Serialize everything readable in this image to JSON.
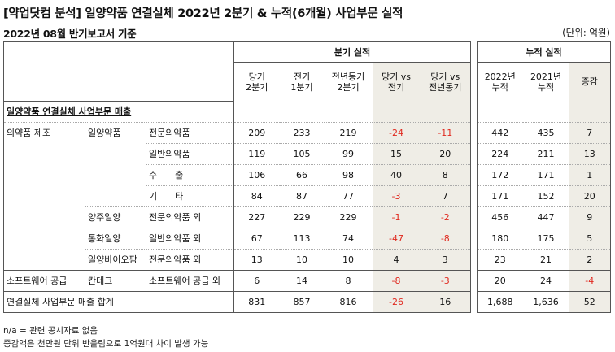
{
  "header": {
    "title": "[약업닷컴 분석] 일양약품 연결실체 2022년 2분기 & 누적(6개월) 사업부문 실적",
    "subtitle": "2022년 08월 반기보고서 기준",
    "unit": "(단위: 억원)"
  },
  "quarterly": {
    "group_label": "분기 실적",
    "col_cur_l1": "당기",
    "col_cur_l2": "2분기",
    "col_prev_l1": "전기",
    "col_prev_l2": "1분기",
    "col_yoy_l1": "전년동기",
    "col_yoy_l2": "2분기",
    "col_vsprev_l1": "당기 vs",
    "col_vsprev_l2": "전기",
    "col_vsyoy_l1": "당기 vs",
    "col_vsyoy_l2": "전년동기"
  },
  "cumulative": {
    "group_label": "누적 실적",
    "col_2022_l1": "2022년",
    "col_2022_l2": "누적",
    "col_2021_l1": "2021년",
    "col_2021_l2": "누적",
    "col_change": "증감"
  },
  "section_label": "일양약품 연결실체 사업부문 매출",
  "rows": [
    {
      "seg": "의약품 제조",
      "co": "일양약품",
      "item": "전문의약품",
      "q_cur": "209",
      "q_prev": "233",
      "q_yoy": "219",
      "vs_prev": "-24",
      "vs_yoy": "-11",
      "c2022": "442",
      "c2021": "435",
      "chg": "7"
    },
    {
      "seg": "",
      "co": "",
      "item": "일반의약품",
      "q_cur": "119",
      "q_prev": "105",
      "q_yoy": "99",
      "vs_prev": "15",
      "vs_yoy": "20",
      "c2022": "224",
      "c2021": "211",
      "chg": "13"
    },
    {
      "seg": "",
      "co": "",
      "item": "수　　출",
      "q_cur": "106",
      "q_prev": "66",
      "q_yoy": "98",
      "vs_prev": "40",
      "vs_yoy": "8",
      "c2022": "172",
      "c2021": "171",
      "chg": "1"
    },
    {
      "seg": "",
      "co": "",
      "item": "기　　타",
      "q_cur": "84",
      "q_prev": "87",
      "q_yoy": "77",
      "vs_prev": "-3",
      "vs_yoy": "7",
      "c2022": "171",
      "c2021": "152",
      "chg": "20"
    },
    {
      "seg": "",
      "co": "양주일양",
      "item": "전문의약품 외",
      "q_cur": "227",
      "q_prev": "229",
      "q_yoy": "229",
      "vs_prev": "-1",
      "vs_yoy": "-2",
      "c2022": "456",
      "c2021": "447",
      "chg": "9"
    },
    {
      "seg": "",
      "co": "통화일양",
      "item": "일반의약품 외",
      "q_cur": "67",
      "q_prev": "113",
      "q_yoy": "74",
      "vs_prev": "-47",
      "vs_yoy": "-8",
      "c2022": "180",
      "c2021": "175",
      "chg": "5"
    },
    {
      "seg": "",
      "co": "일양바이오팜",
      "item": "전문의약품 외",
      "q_cur": "13",
      "q_prev": "10",
      "q_yoy": "10",
      "vs_prev": "4",
      "vs_yoy": "3",
      "c2022": "23",
      "c2021": "21",
      "chg": "2"
    },
    {
      "seg": "소프트웨어 공급",
      "co": "칸테크",
      "item": "소프트웨어 공급 외",
      "q_cur": "6",
      "q_prev": "14",
      "q_yoy": "8",
      "vs_prev": "-8",
      "vs_yoy": "-3",
      "c2022": "20",
      "c2021": "24",
      "chg": "-4"
    }
  ],
  "total": {
    "label": "연결실체 사업부문 매출 합계",
    "q_cur": "831",
    "q_prev": "857",
    "q_yoy": "816",
    "vs_prev": "-26",
    "vs_yoy": "16",
    "c2022": "1,688",
    "c2021": "1,636",
    "chg": "52"
  },
  "notes": {
    "line1": "n/a = 관련 공시자료 없음",
    "line2": "증감액은 천만원 단위 반올림으로 1억원대 차이 발생 가능"
  }
}
